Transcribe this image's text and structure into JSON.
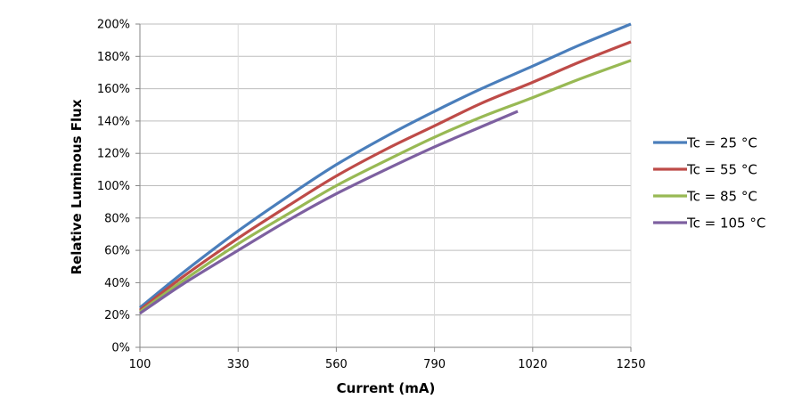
{
  "chart_data": {
    "type": "line",
    "title": "",
    "xlabel": "Current (mA)",
    "ylabel": "Relative Luminous Flux",
    "xlim": [
      100,
      1250
    ],
    "ylim": [
      0,
      200
    ],
    "x_ticks": [
      100,
      330,
      560,
      790,
      1020,
      1250
    ],
    "x_tick_labels": [
      "100",
      "330",
      "560",
      "790",
      "1020",
      "1250"
    ],
    "y_ticks": [
      0,
      20,
      40,
      60,
      80,
      100,
      120,
      140,
      160,
      180,
      200
    ],
    "y_tick_labels": [
      "0%",
      "20%",
      "40%",
      "60%",
      "80%",
      "100%",
      "120%",
      "140%",
      "160%",
      "180%",
      "200%"
    ],
    "grid": true,
    "legend_position": "right",
    "series": [
      {
        "name": "Tc = 25 °C",
        "color": "#4a7ebb",
        "x": [
          100,
          200,
          330,
          450,
          560,
          680,
          790,
          900,
          1020,
          1130,
          1250
        ],
        "y": [
          24.5,
          46,
          72,
          94,
          113,
          131,
          146,
          160,
          174,
          187,
          200
        ]
      },
      {
        "name": "Tc = 55 °C",
        "color": "#be4b48",
        "x": [
          100,
          200,
          330,
          450,
          560,
          680,
          790,
          900,
          1020,
          1130,
          1250
        ],
        "y": [
          23,
          43.5,
          67.5,
          88,
          106,
          123,
          137,
          151,
          164,
          176.5,
          189
        ]
      },
      {
        "name": "Tc = 85 °C",
        "color": "#98b954",
        "x": [
          100,
          200,
          330,
          450,
          560,
          680,
          790,
          900,
          1020,
          1130,
          1250
        ],
        "y": [
          22,
          41,
          64,
          83,
          100,
          116,
          130,
          142.5,
          154.5,
          166,
          177.5
        ]
      },
      {
        "name": "Tc = 105 °C",
        "color": "#7d60a0",
        "x": [
          100,
          200,
          330,
          450,
          560,
          680,
          790,
          900,
          985
        ],
        "y": [
          21,
          39,
          60,
          79,
          95,
          110.5,
          124,
          136.5,
          146
        ]
      }
    ]
  }
}
